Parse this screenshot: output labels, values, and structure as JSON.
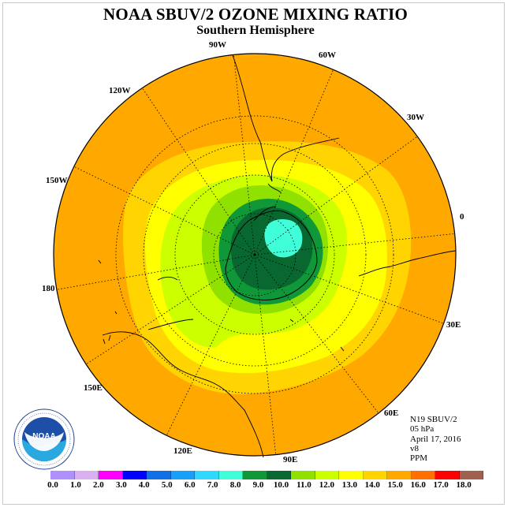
{
  "header": {
    "title": "NOAA SBUV/2 OZONE MIXING RATIO",
    "subtitle": "Southern Hemisphere"
  },
  "meridian_labels": [
    "90W",
    "60W",
    "120W",
    "30W",
    "150W",
    "0",
    "180",
    "30E",
    "150E",
    "60E",
    "120E",
    "90E"
  ],
  "info": {
    "satellite": "N19 SBUV/2",
    "level": "05 hPa",
    "date": "April 17, 2016",
    "version": "v8",
    "units": "PPM"
  },
  "colorbar": {
    "colors": [
      "#b090ff",
      "#d8b0f0",
      "#ff00ff",
      "#b000d8",
      "#0000ff",
      "#1070e8",
      "#18a0f8",
      "#30d8ff",
      "#40ffd8",
      "#109838",
      "#086830",
      "#90e000",
      "#ccff00",
      "#ffff00",
      "#ffd400",
      "#ffa800",
      "#ff7000",
      "#ff0000",
      "#a06050"
    ],
    "segment_colors": [
      "#b090ff",
      "#d8b0f0",
      "#ff00ff",
      "#0000ff",
      "#1070e8",
      "#18a0f8",
      "#30d8ff",
      "#40ffd8",
      "#109838",
      "#086830",
      "#90e000",
      "#ccff00",
      "#ffff00",
      "#ffd400",
      "#ffa800",
      "#ff7000",
      "#ff0000",
      "#a06050"
    ],
    "ticks": [
      "0.0",
      "1.0",
      "2.0",
      "3.0",
      "4.0",
      "5.0",
      "6.0",
      "7.0",
      "8.0",
      "9.0",
      "10.0",
      "11.0",
      "12.0",
      "13.0",
      "14.0",
      "15.0",
      "16.0",
      "17.0",
      "18.0"
    ]
  },
  "logo": {
    "text": "NOAA"
  }
}
